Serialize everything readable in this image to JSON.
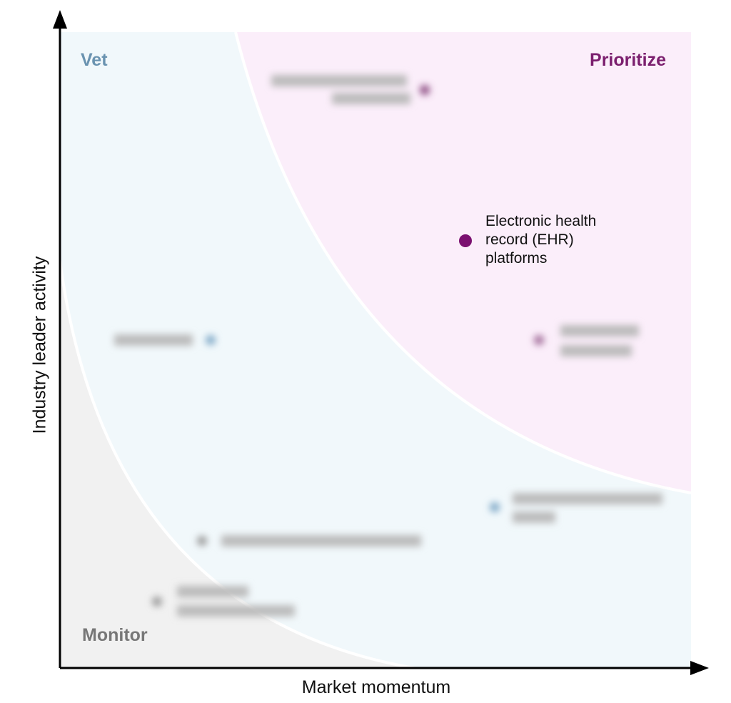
{
  "zones": {
    "top_left": "Vet",
    "top_right": "Prioritize",
    "bottom_left": "Monitor"
  },
  "axes": {
    "x_label": "Market momentum",
    "y_label": "Industry leader activity"
  },
  "highlighted_item": {
    "label": "Electronic health record (EHR) platforms"
  }
}
